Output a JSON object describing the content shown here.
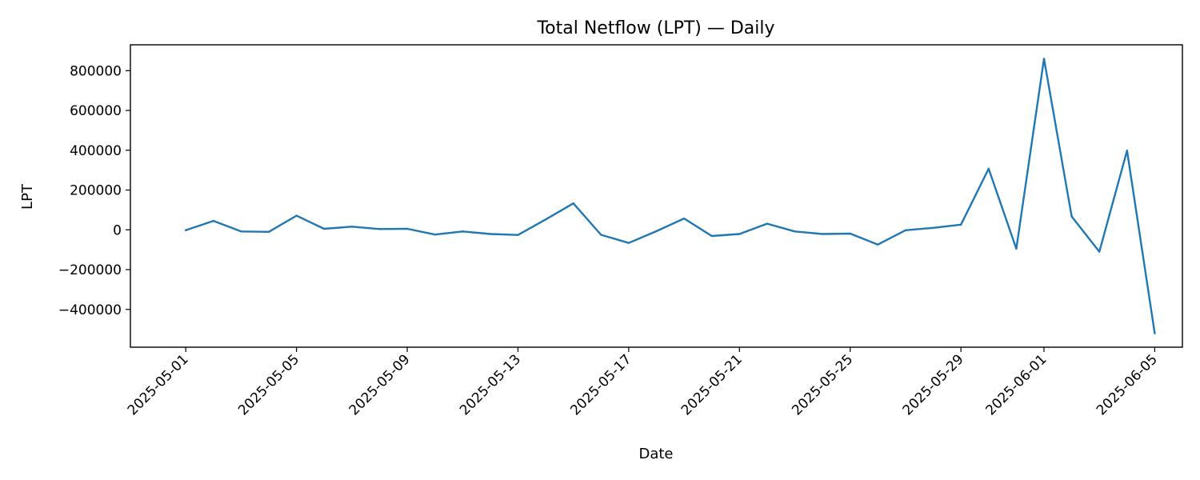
{
  "chart_data": {
    "type": "line",
    "title": "Total Netflow (LPT) — Daily",
    "xlabel": "Date",
    "ylabel": "LPT",
    "x": [
      "2025-05-01",
      "2025-05-02",
      "2025-05-03",
      "2025-05-04",
      "2025-05-05",
      "2025-05-06",
      "2025-05-07",
      "2025-05-08",
      "2025-05-09",
      "2025-05-10",
      "2025-05-11",
      "2025-05-12",
      "2025-05-13",
      "2025-05-14",
      "2025-05-15",
      "2025-05-16",
      "2025-05-17",
      "2025-05-18",
      "2025-05-19",
      "2025-05-20",
      "2025-05-21",
      "2025-05-22",
      "2025-05-23",
      "2025-05-24",
      "2025-05-25",
      "2025-05-26",
      "2025-05-27",
      "2025-05-28",
      "2025-05-29",
      "2025-05-30",
      "2025-05-31",
      "2025-06-01",
      "2025-06-02",
      "2025-06-03",
      "2025-06-04",
      "2025-06-05"
    ],
    "series": [
      {
        "values": [
          -2000,
          45000,
          -8000,
          -10000,
          71000,
          5000,
          16000,
          4000,
          5000,
          -24000,
          -8000,
          -21000,
          -26000,
          52000,
          133000,
          -25000,
          -66000,
          -7000,
          57000,
          -31000,
          -21000,
          31000,
          -8000,
          -21000,
          -19000,
          -74000,
          -2000,
          10000,
          26000,
          307000,
          -95000,
          860000,
          67000,
          -110000,
          398000,
          -520000
        ],
        "color": "#1f77b4"
      }
    ],
    "xlim": [
      "2025-04-29",
      "2025-06-06"
    ],
    "x_ticks": [
      "2025-05-01",
      "2025-05-05",
      "2025-05-09",
      "2025-05-13",
      "2025-05-17",
      "2025-05-21",
      "2025-05-25",
      "2025-05-29",
      "2025-06-01",
      "2025-06-05"
    ],
    "ylim": [
      -590000,
      930000
    ],
    "y_ticks": [
      -400000,
      -200000,
      0,
      200000,
      400000,
      600000,
      800000
    ],
    "y_tick_labels": [
      "−400000",
      "−200000",
      "0",
      "200000",
      "400000",
      "600000",
      "800000"
    ],
    "grid": false,
    "legend": "none"
  }
}
